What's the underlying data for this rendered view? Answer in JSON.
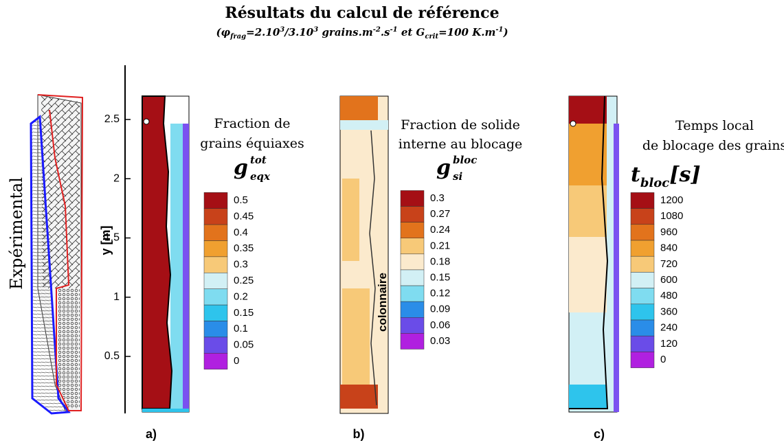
{
  "title": "Résultats du calcul de référence",
  "subtitle": [
    "(φ",
    "frag",
    "=2.10",
    "3",
    "/3.10",
    "3",
    " grains.m",
    "-2",
    ".s",
    "-1",
    " et G",
    "crit",
    "=100 K.m",
    "-1",
    ")"
  ],
  "experimental_label": "Expérimental",
  "y_axis": {
    "label": "y [m]",
    "ticks": [
      0.5,
      1,
      1.5,
      2,
      2.5
    ]
  },
  "panels": [
    {
      "tag": "a)",
      "caption": [
        "Fraction de",
        "grains équiaxes"
      ],
      "symbol": "g",
      "symbol_sup": "tot",
      "symbol_sub": "eqx",
      "levels": [
        0.5,
        0.45,
        0.4,
        0.35,
        0.3,
        0.25,
        0.2,
        0.15,
        0.1,
        0.05,
        0
      ]
    },
    {
      "tag": "b)",
      "caption": [
        "Fraction de solide",
        "interne au blocage"
      ],
      "symbol": "g",
      "symbol_sup": "bloc",
      "symbol_sub": "si",
      "annotation": "colonnaire",
      "levels": [
        0.3,
        0.27,
        0.24,
        0.21,
        0.18,
        0.15,
        0.12,
        0.09,
        0.06,
        0.03
      ]
    },
    {
      "tag": "c)",
      "caption": [
        "Temps local",
        "de blocage des grains"
      ],
      "symbol": "t",
      "symbol_sub": "bloc",
      "symbol_unit": "[s]",
      "levels": [
        1200,
        1080,
        960,
        840,
        720,
        600,
        480,
        360,
        240,
        120,
        0
      ]
    }
  ]
}
